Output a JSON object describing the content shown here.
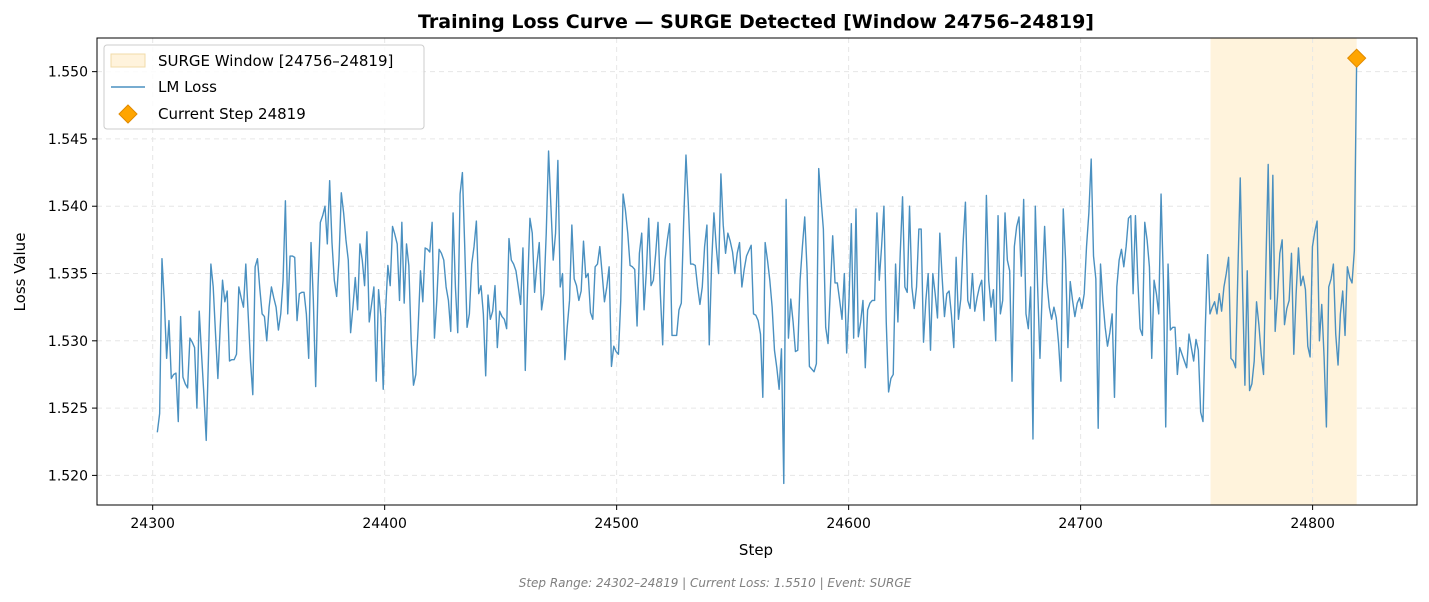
{
  "chart_data": {
    "type": "line",
    "title": "Training Loss Curve — SURGE Detected [Window 24756–24819]",
    "xlabel": "Step",
    "ylabel": "Loss Value",
    "xlim": [
      24276,
      24845
    ],
    "ylim": [
      1.5178,
      1.5525
    ],
    "xticks": [
      24300,
      24400,
      24500,
      24600,
      24700,
      24800
    ],
    "yticks": [
      1.52,
      1.525,
      1.53,
      1.535,
      1.54,
      1.545,
      1.55
    ],
    "grid": true,
    "legend_position": "top-left",
    "surge_window": {
      "label": "SURGE Window [24756–24819]",
      "start": 24756,
      "end": 24819,
      "color": "#fff3dc"
    },
    "series": [
      {
        "name": "LM Loss",
        "color": "#4a90c0",
        "x_start": 24302,
        "x_end": 24819,
        "values": [
          1.5232,
          1.5246,
          1.5361,
          1.533,
          1.5287,
          1.5315,
          1.5272,
          1.5275,
          1.5276,
          1.524,
          1.5318,
          1.5273,
          1.5268,
          1.5265,
          1.5302,
          1.5299,
          1.5295,
          1.525,
          1.5322,
          1.529,
          1.526,
          1.5226,
          1.529,
          1.5357,
          1.534,
          1.5305,
          1.5272,
          1.531,
          1.5345,
          1.5329,
          1.5337,
          1.5285,
          1.5286,
          1.5286,
          1.529,
          1.534,
          1.5332,
          1.5325,
          1.5357,
          1.532,
          1.5285,
          1.526,
          1.5355,
          1.5361,
          1.5339,
          1.532,
          1.5318,
          1.53,
          1.5325,
          1.534,
          1.5332,
          1.5325,
          1.5308,
          1.532,
          1.5345,
          1.5404,
          1.532,
          1.5363,
          1.5363,
          1.5362,
          1.5315,
          1.5335,
          1.5336,
          1.5336,
          1.532,
          1.5287,
          1.5373,
          1.533,
          1.5266,
          1.534,
          1.5388,
          1.5393,
          1.54,
          1.5372,
          1.5419,
          1.5373,
          1.5345,
          1.5333,
          1.536,
          1.541,
          1.5395,
          1.5375,
          1.536,
          1.5306,
          1.5325,
          1.5347,
          1.5323,
          1.5372,
          1.536,
          1.5341,
          1.5381,
          1.5314,
          1.5327,
          1.534,
          1.527,
          1.5338,
          1.5318,
          1.5264,
          1.5322,
          1.5356,
          1.5341,
          1.5385,
          1.5379,
          1.5372,
          1.533,
          1.5388,
          1.5328,
          1.5372,
          1.5356,
          1.53,
          1.5267,
          1.5275,
          1.531,
          1.5352,
          1.5329,
          1.5369,
          1.5368,
          1.5366,
          1.5388,
          1.5302,
          1.533,
          1.5368,
          1.5365,
          1.536,
          1.534,
          1.533,
          1.5307,
          1.5395,
          1.534,
          1.5306,
          1.5409,
          1.5425,
          1.537,
          1.531,
          1.532,
          1.5357,
          1.537,
          1.5389,
          1.5335,
          1.5341,
          1.532,
          1.5274,
          1.5334,
          1.5316,
          1.5322,
          1.5341,
          1.5295,
          1.5322,
          1.5318,
          1.5316,
          1.5309,
          1.5376,
          1.536,
          1.5357,
          1.5352,
          1.534,
          1.5327,
          1.5369,
          1.5278,
          1.534,
          1.5391,
          1.538,
          1.5336,
          1.5357,
          1.5373,
          1.5323,
          1.5335,
          1.538,
          1.5441,
          1.54,
          1.536,
          1.538,
          1.5434,
          1.534,
          1.535,
          1.5286,
          1.531,
          1.533,
          1.5386,
          1.5346,
          1.5341,
          1.533,
          1.5337,
          1.5374,
          1.5347,
          1.535,
          1.5321,
          1.5316,
          1.5355,
          1.5357,
          1.537,
          1.535,
          1.5329,
          1.534,
          1.5355,
          1.5281,
          1.5296,
          1.5292,
          1.529,
          1.533,
          1.5409,
          1.5397,
          1.538,
          1.5356,
          1.5355,
          1.5353,
          1.5311,
          1.5365,
          1.538,
          1.5323,
          1.5352,
          1.5391,
          1.5341,
          1.5345,
          1.5365,
          1.5388,
          1.5335,
          1.5297,
          1.536,
          1.5375,
          1.5387,
          1.5304,
          1.5304,
          1.5304,
          1.5323,
          1.5328,
          1.5388,
          1.5438,
          1.5402,
          1.5357,
          1.5357,
          1.5356,
          1.534,
          1.5327,
          1.534,
          1.537,
          1.5386,
          1.5297,
          1.5357,
          1.5395,
          1.537,
          1.535,
          1.5424,
          1.5386,
          1.5365,
          1.538,
          1.5374,
          1.5366,
          1.535,
          1.5365,
          1.5373,
          1.534,
          1.5353,
          1.5363,
          1.5367,
          1.5371,
          1.532,
          1.5319,
          1.5315,
          1.5305,
          1.5258,
          1.5373,
          1.536,
          1.5345,
          1.5325,
          1.5293,
          1.528,
          1.5264,
          1.5294,
          1.5194,
          1.5405,
          1.5302,
          1.5331,
          1.5314,
          1.5292,
          1.5293,
          1.5345,
          1.537,
          1.5392,
          1.5352,
          1.5281,
          1.5279,
          1.5277,
          1.5283,
          1.5428,
          1.5405,
          1.5383,
          1.531,
          1.5298,
          1.5338,
          1.5378,
          1.5343,
          1.5343,
          1.533,
          1.5316,
          1.535,
          1.5291,
          1.533,
          1.5387,
          1.5302,
          1.5398,
          1.5303,
          1.5314,
          1.533,
          1.528,
          1.5323,
          1.5328,
          1.533,
          1.533,
          1.5395,
          1.5345,
          1.537,
          1.54,
          1.5314,
          1.5262,
          1.5272,
          1.5275,
          1.5357,
          1.5314,
          1.5365,
          1.5407,
          1.534,
          1.5336,
          1.54,
          1.534,
          1.5324,
          1.534,
          1.5383,
          1.5383,
          1.5299,
          1.533,
          1.535,
          1.5293,
          1.535,
          1.5335,
          1.5317,
          1.538,
          1.5347,
          1.5318,
          1.5335,
          1.5337,
          1.5319,
          1.5295,
          1.5362,
          1.5316,
          1.5331,
          1.5373,
          1.5403,
          1.533,
          1.5324,
          1.535,
          1.5322,
          1.5332,
          1.534,
          1.5345,
          1.5315,
          1.5408,
          1.5345,
          1.5325,
          1.5338,
          1.53,
          1.5393,
          1.532,
          1.533,
          1.5395,
          1.536,
          1.5352,
          1.527,
          1.537,
          1.5385,
          1.5392,
          1.5348,
          1.5405,
          1.532,
          1.5309,
          1.534,
          1.5227,
          1.54,
          1.534,
          1.5287,
          1.5338,
          1.5385,
          1.5343,
          1.5325,
          1.5316,
          1.5325,
          1.5317,
          1.5298,
          1.527,
          1.5398,
          1.536,
          1.5295,
          1.5344,
          1.533,
          1.5318,
          1.5328,
          1.5332,
          1.5324,
          1.5335,
          1.537,
          1.5395,
          1.5435,
          1.5363,
          1.5346,
          1.5235,
          1.5357,
          1.533,
          1.531,
          1.5296,
          1.5306,
          1.532,
          1.5258,
          1.534,
          1.536,
          1.5368,
          1.5355,
          1.537,
          1.5391,
          1.5393,
          1.5335,
          1.5393,
          1.5346,
          1.5309,
          1.5304,
          1.5388,
          1.5375,
          1.5355,
          1.5287,
          1.5345,
          1.5335,
          1.532,
          1.5409,
          1.5345,
          1.5236,
          1.5357,
          1.5308,
          1.531,
          1.531,
          1.5275,
          1.5295,
          1.529,
          1.5285,
          1.528,
          1.5305,
          1.5295,
          1.5285,
          1.5301,
          1.5293,
          1.5247,
          1.524,
          1.531,
          1.5364,
          1.532,
          1.5325,
          1.5329,
          1.532,
          1.5335,
          1.5322,
          1.534,
          1.535,
          1.5362,
          1.5287,
          1.5285,
          1.528,
          1.5352,
          1.5421,
          1.5339,
          1.5267,
          1.5352,
          1.5263,
          1.5268,
          1.5285,
          1.5329,
          1.5312,
          1.529,
          1.5275,
          1.5355,
          1.5431,
          1.5331,
          1.5423,
          1.5307,
          1.5333,
          1.5365,
          1.5375,
          1.5312,
          1.5324,
          1.533,
          1.5365,
          1.529,
          1.5335,
          1.5369,
          1.5341,
          1.5348,
          1.5338,
          1.5296,
          1.5288,
          1.537,
          1.5381,
          1.5389,
          1.53,
          1.5327,
          1.5288,
          1.5236,
          1.534,
          1.5346,
          1.5357,
          1.5305,
          1.5282,
          1.532,
          1.5337,
          1.5304,
          1.5355,
          1.5347,
          1.5343,
          1.5367,
          1.551
        ]
      },
      {
        "name": "Current Step 24819",
        "type": "scatter",
        "marker": "diamond",
        "color": "#ffa500",
        "x": [
          24819
        ],
        "values": [
          1.551
        ]
      }
    ],
    "footer": "Step Range: 24302–24819 | Current Loss: 1.5510 | Event: SURGE"
  }
}
